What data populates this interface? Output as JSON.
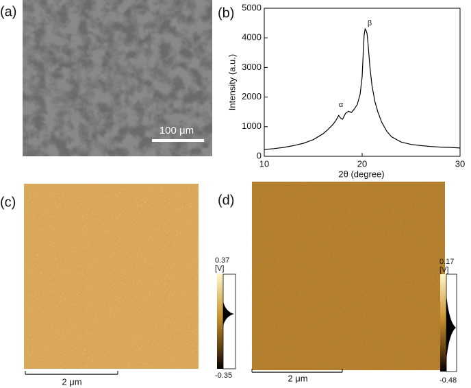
{
  "panels": {
    "a": {
      "label": "(a)",
      "scale_bar": "100 μm"
    },
    "b": {
      "label": "(b)",
      "x_label": "2θ (degree)",
      "y_label": "Intensity (a.u.)",
      "xlim": [
        10,
        30
      ],
      "ylim": [
        0,
        5000
      ],
      "xticks": [
        10,
        20,
        30
      ],
      "yticks": [
        0,
        1000,
        2000,
        3000,
        4000,
        5000
      ],
      "annotations": [
        "α",
        "β"
      ],
      "line_color": "#000000",
      "x": [
        10,
        11,
        12,
        13,
        14,
        15,
        16,
        16.5,
        17,
        17.3,
        17.6,
        17.8,
        18,
        18.3,
        18.6,
        18.9,
        19.2,
        19.5,
        19.8,
        20,
        20.1,
        20.2,
        20.3,
        20.4,
        20.5,
        20.6,
        20.8,
        21,
        21.3,
        21.6,
        22,
        22.5,
        23,
        24,
        25,
        26,
        27,
        28,
        29,
        30
      ],
      "values": [
        230,
        260,
        300,
        360,
        440,
        560,
        760,
        900,
        1070,
        1200,
        1380,
        1290,
        1250,
        1450,
        1520,
        1480,
        1600,
        1750,
        2100,
        2700,
        3400,
        4100,
        4300,
        4250,
        4150,
        3800,
        3000,
        2400,
        1850,
        1500,
        1150,
        850,
        660,
        480,
        400,
        360,
        330,
        310,
        300,
        280
      ]
    },
    "c": {
      "label": "(c)",
      "colorbar_max": 0.37,
      "colorbar_unit": "[V]",
      "colorbar_min": -0.35,
      "scale_bar": "2 μm"
    },
    "d": {
      "label": "(d)",
      "colorbar_max": 0.17,
      "colorbar_unit": "[V]",
      "colorbar_min": -0.48,
      "scale_bar": "2 μm"
    }
  }
}
